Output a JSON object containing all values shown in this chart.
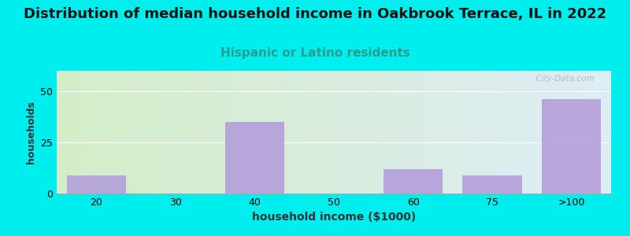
{
  "title": "Distribution of median household income in Oakbrook Terrace, IL in 2022",
  "subtitle": "Hispanic or Latino residents",
  "xlabel": "household income ($1000)",
  "ylabel": "households",
  "bg_outer_color": "#00EEEE",
  "bg_inner_gradient_left": "#d4edc8",
  "bg_inner_gradient_right": "#ddeef5",
  "bar_color": "#b39ddb",
  "categories": [
    "20",
    "30",
    "40",
    "50",
    "60",
    "75",
    ">100"
  ],
  "values": [
    9,
    0,
    35,
    0,
    12,
    9,
    46
  ],
  "ylim": [
    0,
    60
  ],
  "yticks": [
    0,
    25,
    50
  ],
  "title_fontsize": 13,
  "subtitle_fontsize": 11,
  "subtitle_color": "#2a9d8f",
  "xlabel_fontsize": 10,
  "ylabel_fontsize": 9,
  "tick_fontsize": 9,
  "watermark": "  City-Data.com"
}
